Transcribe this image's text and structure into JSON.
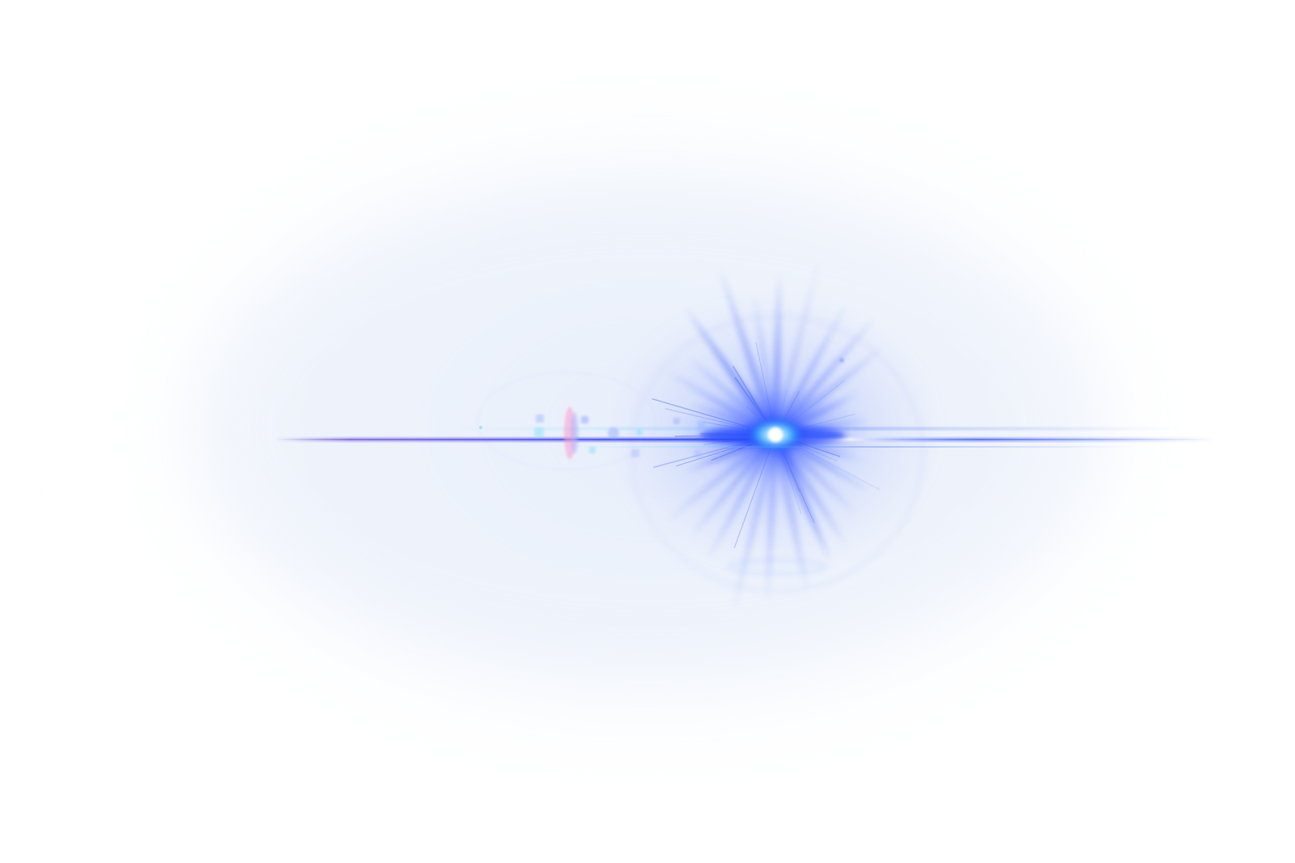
{
  "image": {
    "subject": "blue-lens-flare",
    "background_color": "#ffffff",
    "colors": {
      "core": "#ffffff",
      "core_glow": "#38b8ff",
      "primary_blue": "#2a4dff",
      "deep_blue": "#1a2fe0",
      "haze": "#eef3fb",
      "streak_violet": "#5a3cd8",
      "ghost_pink": "#ff9ad0",
      "ghost_cyan": "#7ee0ff"
    },
    "ray_count": 28
  }
}
